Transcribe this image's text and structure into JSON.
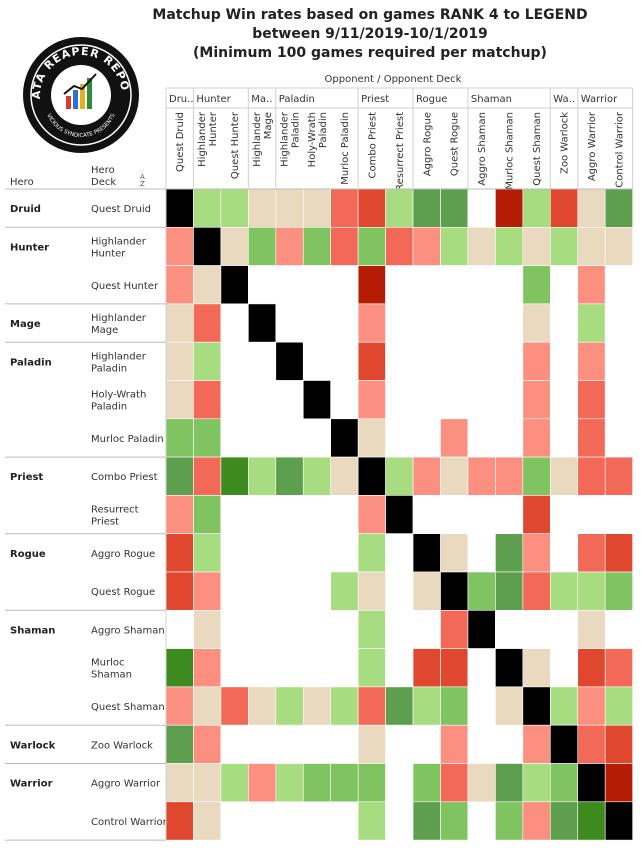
{
  "title": {
    "line1": "Matchup Win rates based on games RANK 4 to LEGEND",
    "line2": "between 9/11/2019-10/1/2019",
    "line3": "(Minimum 100 games required per matchup)"
  },
  "logo": {
    "text": "DATA REAPER REPORT",
    "subtext": "VICIOUS SYNDICATE PRESENTS"
  },
  "column_header_caption": "Opponent  /  Opponent Deck",
  "row_header_hero": "Hero",
  "row_header_deck": "Hero Deck",
  "sort_icon": "sort-az-icon",
  "column_heroes": [
    {
      "label": "Dru..",
      "span": 1
    },
    {
      "label": "Hunter",
      "span": 2
    },
    {
      "label": "Ma..",
      "span": 1
    },
    {
      "label": "Paladin",
      "span": 3
    },
    {
      "label": "Priest",
      "span": 2
    },
    {
      "label": "Rogue",
      "span": 2
    },
    {
      "label": "Shaman",
      "span": 3
    },
    {
      "label": "Wa..",
      "span": 1
    },
    {
      "label": "Warrior",
      "span": 2
    }
  ],
  "column_decks": [
    [
      "Quest Druid"
    ],
    [
      "Highlander",
      "Hunter"
    ],
    [
      "Quest Hunter"
    ],
    [
      "Highlander",
      "Mage"
    ],
    [
      "Highlander",
      "Paladin"
    ],
    [
      "Holy-Wrath",
      "Paladin"
    ],
    [
      "Murloc Paladin"
    ],
    [
      "Combo Priest"
    ],
    [
      "Resurrect Priest"
    ],
    [
      "Aggro Rogue"
    ],
    [
      "Quest Rogue"
    ],
    [
      "Aggro Shaman"
    ],
    [
      "Murloc Shaman"
    ],
    [
      "Quest Shaman"
    ],
    [
      "Zoo Warlock"
    ],
    [
      "Aggro Warrior"
    ],
    [
      "Control Warrior"
    ]
  ],
  "row_heroes": [
    {
      "label": "Druid",
      "span": 1
    },
    {
      "label": "Hunter",
      "span": 2
    },
    {
      "label": "Mage",
      "span": 1
    },
    {
      "label": "Paladin",
      "span": 3
    },
    {
      "label": "Priest",
      "span": 2
    },
    {
      "label": "Rogue",
      "span": 2
    },
    {
      "label": "Shaman",
      "span": 3
    },
    {
      "label": "Warlock",
      "span": 1
    },
    {
      "label": "Warrior",
      "span": 2
    }
  ],
  "row_decks": [
    [
      "Quest Druid"
    ],
    [
      "Highlander",
      "Hunter"
    ],
    [
      "Quest Hunter"
    ],
    [
      "Highlander",
      "Mage"
    ],
    [
      "Highlander",
      "Paladin"
    ],
    [
      "Holy-Wrath",
      "Paladin"
    ],
    [
      "Murloc Paladin"
    ],
    [
      "Combo Priest"
    ],
    [
      "Resurrect",
      "Priest"
    ],
    [
      "Aggro Rogue"
    ],
    [
      "Quest Rogue"
    ],
    [
      "Aggro Shaman"
    ],
    [
      "Murloc",
      "Shaman"
    ],
    [
      "Quest Shaman"
    ],
    [
      "Zoo Warlock"
    ],
    [
      "Aggro Warrior"
    ],
    [
      "Control Warrior"
    ]
  ],
  "colors": {
    "mirror": "#000000",
    "no_data": "#ffffff",
    "0": "#b51c06",
    "1": "#e0472f",
    "2": "#f26a57",
    "3": "#fb8f80",
    "4": "#e9d9be",
    "5": "#a8dc81",
    "6": "#7fc460",
    "7": "#5d9f4f",
    "8": "#3d8b1e",
    "grid": "#d0d0d0"
  },
  "chart_data": {
    "type": "heatmap",
    "title": "Matchup Win rates based on games RANK 4 to LEGEND between 9/11/2019-10/1/2019 (Minimum 100 games required per matchup)",
    "xlabel": "Opponent / Opponent Deck",
    "ylabel": "Hero / Hero Deck",
    "value_scale": "win-rate color bucket: 0 = strongly unfavored (dark red), 4 = even (tan), 8 = strongly favored (dark green); 'X' = mirror (black); null = fewer than 100 games (blank)",
    "x": [
      "Quest Druid",
      "Highlander Hunter",
      "Quest Hunter",
      "Highlander Mage",
      "Highlander Paladin",
      "Holy-Wrath Paladin",
      "Murloc Paladin",
      "Combo Priest",
      "Resurrect Priest",
      "Aggro Rogue",
      "Quest Rogue",
      "Aggro Shaman",
      "Murloc Shaman",
      "Quest Shaman",
      "Zoo Warlock",
      "Aggro Warrior",
      "Control Warrior"
    ],
    "y": [
      "Quest Druid",
      "Highlander Hunter",
      "Quest Hunter",
      "Highlander Mage",
      "Highlander Paladin",
      "Holy-Wrath Paladin",
      "Murloc Paladin",
      "Combo Priest",
      "Resurrect Priest",
      "Aggro Rogue",
      "Quest Rogue",
      "Aggro Shaman",
      "Murloc Shaman",
      "Quest Shaman",
      "Zoo Warlock",
      "Aggro Warrior",
      "Control Warrior"
    ],
    "values": [
      [
        "X",
        5,
        5,
        4,
        4,
        4,
        2,
        1,
        5,
        7,
        7,
        null,
        0,
        5,
        1,
        4,
        7
      ],
      [
        3,
        "X",
        4,
        6,
        3,
        6,
        2,
        6,
        2,
        3,
        5,
        4,
        5,
        4,
        5,
        4,
        4
      ],
      [
        3,
        4,
        "X",
        null,
        null,
        null,
        null,
        0,
        null,
        null,
        null,
        null,
        null,
        6,
        null,
        3,
        null
      ],
      [
        4,
        2,
        null,
        "X",
        null,
        null,
        null,
        3,
        null,
        null,
        null,
        null,
        null,
        4,
        null,
        5,
        null
      ],
      [
        4,
        5,
        null,
        null,
        "X",
        null,
        null,
        1,
        null,
        null,
        null,
        null,
        null,
        3,
        null,
        3,
        null
      ],
      [
        4,
        2,
        null,
        null,
        null,
        "X",
        null,
        3,
        null,
        null,
        null,
        null,
        null,
        3,
        null,
        2,
        null
      ],
      [
        6,
        6,
        null,
        null,
        null,
        null,
        "X",
        4,
        null,
        null,
        3,
        null,
        null,
        3,
        null,
        2,
        null
      ],
      [
        7,
        2,
        8,
        5,
        7,
        5,
        4,
        "X",
        5,
        3,
        4,
        3,
        3,
        6,
        4,
        2,
        2
      ],
      [
        3,
        6,
        null,
        null,
        null,
        null,
        null,
        3,
        "X",
        null,
        null,
        null,
        null,
        1,
        null,
        null,
        null
      ],
      [
        1,
        5,
        null,
        null,
        null,
        null,
        null,
        5,
        null,
        "X",
        4,
        null,
        7,
        3,
        null,
        2,
        1
      ],
      [
        1,
        3,
        null,
        null,
        null,
        null,
        5,
        4,
        null,
        4,
        "X",
        6,
        7,
        2,
        5,
        5,
        6
      ],
      [
        null,
        4,
        null,
        null,
        null,
        null,
        null,
        5,
        null,
        null,
        2,
        "X",
        null,
        null,
        null,
        4,
        null
      ],
      [
        8,
        3,
        null,
        null,
        null,
        null,
        null,
        5,
        null,
        1,
        1,
        null,
        "X",
        4,
        null,
        1,
        2
      ],
      [
        3,
        4,
        2,
        4,
        5,
        4,
        5,
        2,
        7,
        5,
        6,
        null,
        4,
        "X",
        5,
        3,
        5
      ],
      [
        7,
        3,
        null,
        null,
        null,
        null,
        null,
        4,
        null,
        null,
        3,
        null,
        null,
        3,
        "X",
        2,
        1
      ],
      [
        4,
        4,
        5,
        3,
        5,
        6,
        6,
        6,
        null,
        6,
        2,
        4,
        7,
        5,
        6,
        "X",
        0
      ],
      [
        1,
        4,
        null,
        null,
        null,
        null,
        null,
        5,
        null,
        7,
        6,
        null,
        6,
        3,
        7,
        8,
        "X"
      ]
    ]
  }
}
